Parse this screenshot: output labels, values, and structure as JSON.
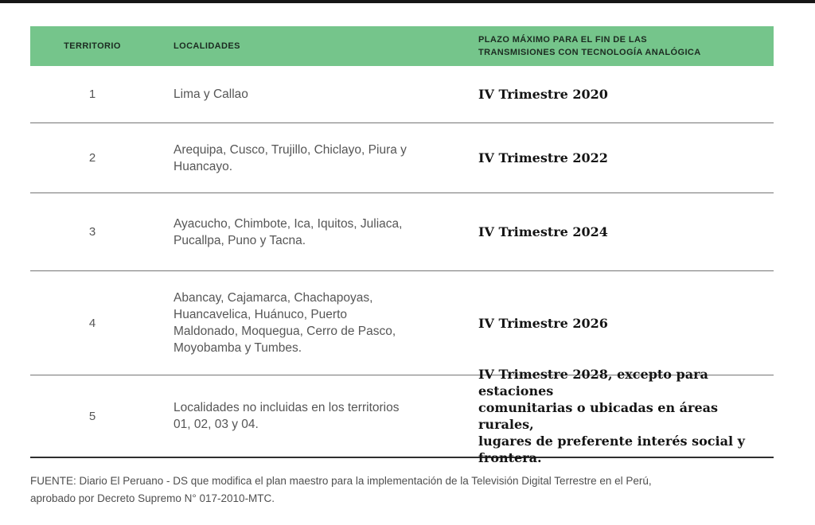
{
  "page": {
    "background_color": "#ffffff",
    "top_bar_color": "#161616"
  },
  "table": {
    "header": {
      "bg_color": "#75c58b",
      "text_color": "#1c2b21",
      "columns": [
        {
          "label": "TERRITORIO"
        },
        {
          "label": "LOCALIDADES"
        },
        {
          "label": "PLAZO MÁXIMO PARA EL FIN DE LAS\nTRANSMISIONES CON TECNOLOGÍA ANALÓGICA"
        }
      ]
    },
    "rows": [
      {
        "territorio": "1",
        "localidades": "Lima y Callao",
        "plazo": "IV Trimestre 2020"
      },
      {
        "territorio": "2",
        "localidades": "Arequipa, Cusco, Trujillo, Chiclayo, Piura y\nHuancayo.",
        "plazo": "IV Trimestre 2022"
      },
      {
        "territorio": "3",
        "localidades": "Ayacucho, Chimbote, Ica, Iquitos, Juliaca,\nPucallpa, Puno y Tacna.",
        "plazo": "IV Trimestre 2024"
      },
      {
        "territorio": "4",
        "localidades": "Abancay, Cajamarca, Chachapoyas,\nHuancavelica, Huánuco, Puerto\nMaldonado, Moquegua, Cerro de Pasco,\nMoyobamba y Tumbes.",
        "plazo": "IV Trimestre 2026"
      },
      {
        "territorio": "5",
        "localidades": "Localidades no incluidas en los territorios\n01, 02, 03 y 04.",
        "plazo": "IV Trimestre 2028, excepto para estaciones\ncomunitarias o ubicadas en áreas rurales,\nlugares de preferente interés social y frontera."
      }
    ]
  },
  "footer": {
    "source": "FUENTE: Diario El Peruano - DS que modifica el plan maestro para la implementación de la Televisión Digital Terrestre en el Perú,\naprobado por Decreto Supremo N° 017-2010-MTC."
  }
}
